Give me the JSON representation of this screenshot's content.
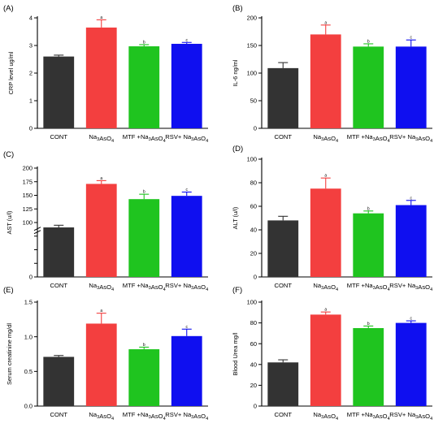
{
  "colors": {
    "CONT": "#333333",
    "Na3AsO4": "#f33f3f",
    "MTF": "#1fc41f",
    "RSV": "#0f0ff0",
    "axis": "#000000"
  },
  "chart_data": [
    {
      "type": "bar",
      "panel_label": "(A)",
      "ylabel": "CRP level ug/ml",
      "ylim": [
        0,
        4
      ],
      "yticks": [
        0,
        1,
        2,
        3,
        4
      ],
      "categories": [
        "CONT",
        "Na3AsO4",
        "MTF +Na3AsO4",
        "RSV+ Na3AsO4"
      ],
      "values": [
        2.6,
        3.65,
        2.97,
        3.06
      ],
      "errors": [
        0.05,
        0.28,
        0.06,
        0.05
      ],
      "sig_letters": [
        "",
        "a",
        "b",
        "c"
      ]
    },
    {
      "type": "bar",
      "panel_label": "(B)",
      "ylabel": "IL-6 ng/ml",
      "ylim": [
        0,
        200
      ],
      "yticks": [
        0,
        50,
        100,
        150,
        200
      ],
      "categories": [
        "CONT",
        "Na3AsO4",
        "MTF +Na3AsO4",
        "RSV+ Na3AsO4"
      ],
      "values": [
        109,
        170,
        148,
        148
      ],
      "errors": [
        10,
        17,
        5,
        12
      ],
      "sig_letters": [
        "",
        "a",
        "b",
        "c"
      ]
    },
    {
      "type": "bar",
      "panel_label": "(C)",
      "ylabel": "AST (u/l)",
      "ylim": [
        0,
        200
      ],
      "yticks": [
        0,
        25,
        50,
        75,
        100,
        125,
        150,
        175,
        200
      ],
      "ytick_labels": [
        "0",
        "",
        "",
        "",
        "100",
        "125",
        "150",
        "175",
        "200"
      ],
      "axis_break": true,
      "categories": [
        "CONT",
        "Na3AsO4",
        "MTF +Na3AsO4",
        "RSV+ Na3AsO4"
      ],
      "values": [
        91,
        171,
        143,
        149
      ],
      "errors": [
        4,
        6,
        9,
        7
      ],
      "sig_letters": [
        "",
        "a",
        "b",
        "c"
      ]
    },
    {
      "type": "bar",
      "panel_label": "(D)",
      "ylabel": "ALT (u/l)",
      "ylim": [
        0,
        100
      ],
      "yticks": [
        0,
        20,
        40,
        60,
        80,
        100
      ],
      "categories": [
        "CONT",
        "Na3AsO4",
        "MTF +Na3AsO4",
        "RSV+ Na3AsO4"
      ],
      "values": [
        48,
        75,
        54,
        61
      ],
      "errors": [
        3.5,
        9,
        2,
        4
      ],
      "sig_letters": [
        "",
        "a",
        "b",
        "c"
      ]
    },
    {
      "type": "bar",
      "panel_label": "(E)",
      "ylabel": "Serum creatinine mg/dl",
      "ylim": [
        0,
        1.5
      ],
      "yticks": [
        0,
        0.5,
        1.0,
        1.5
      ],
      "ytick_labels": [
        "0.0",
        "0.5",
        "1.0",
        "1.5"
      ],
      "categories": [
        "CONT",
        "Na3AsO4",
        "MTF +Na3AsO4",
        "RSV+ Na3AsO4"
      ],
      "values": [
        0.71,
        1.19,
        0.82,
        1.01
      ],
      "errors": [
        0.02,
        0.15,
        0.03,
        0.1
      ],
      "sig_letters": [
        "",
        "a",
        "b",
        "c"
      ]
    },
    {
      "type": "bar",
      "panel_label": "(F)",
      "ylabel": "Blood Urea mg/l",
      "ylim": [
        0,
        100
      ],
      "yticks": [
        0,
        20,
        40,
        60,
        80,
        100
      ],
      "categories": [
        "CONT",
        "Na3AsO4",
        "MTF +Na3AsO4",
        "RSV+ Na3AsO4"
      ],
      "values": [
        42,
        88,
        75,
        80
      ],
      "errors": [
        2.5,
        2.5,
        2,
        2
      ],
      "sig_letters": [
        "",
        "a",
        "b",
        "c"
      ]
    }
  ]
}
